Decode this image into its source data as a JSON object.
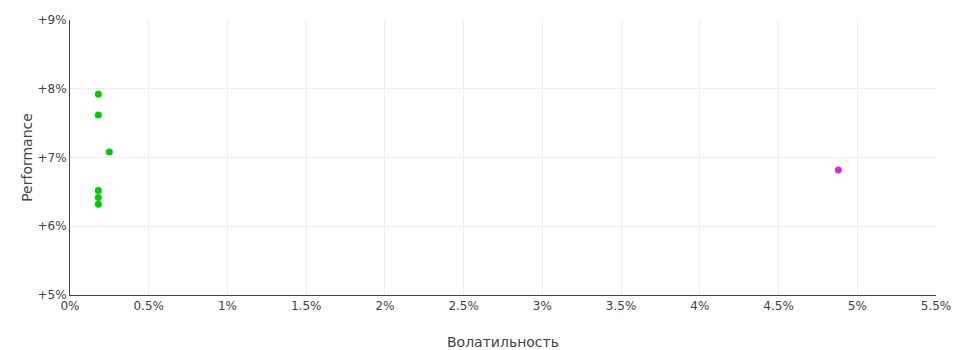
{
  "chart_data": {
    "type": "scatter",
    "xlabel": "Волатильность",
    "ylabel": "Performance",
    "xlim": [
      0.0,
      0.055
    ],
    "ylim": [
      0.05,
      0.09
    ],
    "xticks": [
      {
        "value": 0.0,
        "label": "0%"
      },
      {
        "value": 0.005,
        "label": "0.5%"
      },
      {
        "value": 0.01,
        "label": "1%"
      },
      {
        "value": 0.015,
        "label": "1.5%"
      },
      {
        "value": 0.02,
        "label": "2%"
      },
      {
        "value": 0.025,
        "label": "2.5%"
      },
      {
        "value": 0.03,
        "label": "3%"
      },
      {
        "value": 0.035,
        "label": "3.5%"
      },
      {
        "value": 0.04,
        "label": "4%"
      },
      {
        "value": 0.045,
        "label": "4.5%"
      },
      {
        "value": 0.05,
        "label": "5%"
      },
      {
        "value": 0.055,
        "label": "5.5%"
      }
    ],
    "yticks": [
      {
        "value": 0.05,
        "label": "+5%"
      },
      {
        "value": 0.06,
        "label": "+6%"
      },
      {
        "value": 0.07,
        "label": "+7%"
      },
      {
        "value": 0.08,
        "label": "+8%"
      },
      {
        "value": 0.09,
        "label": "+9%"
      }
    ],
    "grid": true,
    "series": [
      {
        "color": "#00cc00",
        "x": [
          0.0018,
          0.0018,
          0.0025,
          0.0018,
          0.0018,
          0.0018
        ],
        "values": [
          0.0792,
          0.0762,
          0.0708,
          0.0652,
          0.0642,
          0.0632
        ]
      },
      {
        "color": "#cc33cc",
        "x": [
          0.0488
        ],
        "values": [
          0.0682
        ]
      }
    ]
  }
}
